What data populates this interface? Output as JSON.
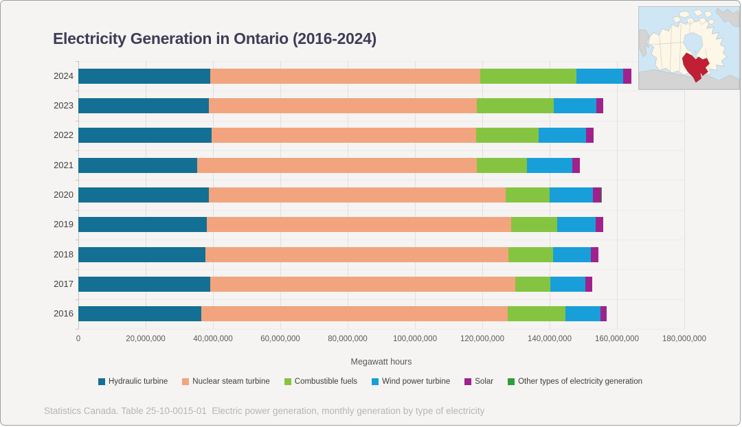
{
  "title": "Electricity Generation in Ontario (2016-2024)",
  "source_note": "Statistics Canada. Table 25-10-0015-01  Electric power generation, monthly generation by type of electricity",
  "colors": {
    "background": "#F5F4F2",
    "title_text": "#3F3D56",
    "tick_text": "#595959",
    "year_text": "#404040",
    "footer_text": "#B7B5B2",
    "gridline": "#E2E0DD",
    "axis_line": "#C7C5C2",
    "map_water": "#cfe7f5",
    "map_land": "#fcf7e6",
    "map_other_land": "#d4d4d4",
    "map_highlight": "#c01f34"
  },
  "map": {
    "name": "canada-locator-map",
    "highlighted_region": "Ontario"
  },
  "chart_data": {
    "type": "bar",
    "orientation": "horizontal",
    "stacked": true,
    "grid": "vertical",
    "legend_position": "bottom",
    "title": "Electricity Generation in Ontario (2016-2024)",
    "xlabel": "Megawatt hours",
    "ylabel": "",
    "xlim": [
      0,
      180000000
    ],
    "x_ticks": [
      0,
      20000000,
      40000000,
      60000000,
      80000000,
      100000000,
      120000000,
      140000000,
      160000000,
      180000000
    ],
    "x_tick_labels": [
      "0",
      "20,000,000",
      "40,000,000",
      "60,000,000",
      "80,000,000",
      "100,000,000",
      "120,000,000",
      "140,000,000",
      "160,000,000",
      "180,000,000"
    ],
    "categories": [
      "2024",
      "2023",
      "2022",
      "2021",
      "2020",
      "2019",
      "2018",
      "2017",
      "2016"
    ],
    "units": "Megawatt hours",
    "series": [
      {
        "name": "Hydraulic turbine",
        "color": "#146F94",
        "values": [
          39200000,
          38800000,
          39600000,
          35300000,
          38800000,
          38200000,
          37800000,
          39200000,
          36500000
        ]
      },
      {
        "name": "Nuclear steam turbine",
        "color": "#F2A47E",
        "values": [
          80100000,
          79600000,
          78600000,
          83000000,
          88100000,
          90300000,
          90000000,
          90600000,
          91000000
        ]
      },
      {
        "name": "Combustible fuels",
        "color": "#85C441",
        "values": [
          28700000,
          22800000,
          18500000,
          15000000,
          13200000,
          13700000,
          13200000,
          10400000,
          17100000
        ]
      },
      {
        "name": "Wind power turbine",
        "color": "#189FD9",
        "values": [
          13800000,
          12600000,
          14200000,
          13400000,
          12700000,
          11500000,
          11200000,
          10400000,
          10600000
        ]
      },
      {
        "name": "Solar",
        "color": "#A0218C",
        "values": [
          2400000,
          2200000,
          2200000,
          2300000,
          2500000,
          2300000,
          2300000,
          2100000,
          1700000
        ]
      },
      {
        "name": "Other types of electricity generation",
        "color": "#2E9E3C",
        "values": [
          0,
          0,
          0,
          0,
          300000,
          0,
          0,
          0,
          0
        ]
      }
    ]
  }
}
